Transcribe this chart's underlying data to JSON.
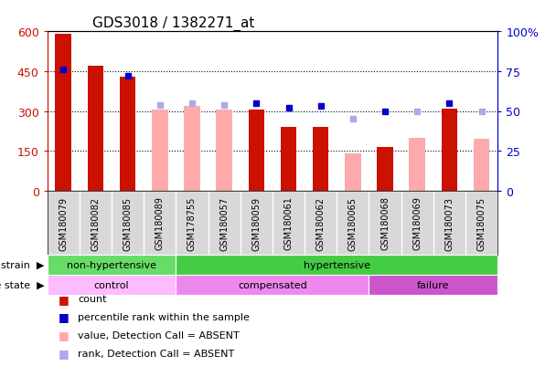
{
  "title": "GDS3018 / 1382271_at",
  "samples": [
    "GSM180079",
    "GSM180082",
    "GSM180085",
    "GSM180089",
    "GSM178755",
    "GSM180057",
    "GSM180059",
    "GSM180061",
    "GSM180062",
    "GSM180065",
    "GSM180068",
    "GSM180069",
    "GSM180073",
    "GSM180075"
  ],
  "count_values": [
    590,
    470,
    430,
    null,
    null,
    null,
    305,
    240,
    240,
    null,
    165,
    null,
    310,
    null
  ],
  "count_absent": [
    null,
    null,
    null,
    305,
    320,
    305,
    null,
    null,
    null,
    140,
    null,
    200,
    null,
    195
  ],
  "percentile_rank": [
    76,
    null,
    72,
    null,
    null,
    null,
    55,
    52,
    53,
    null,
    50,
    null,
    55,
    null
  ],
  "percentile_rank_absent": [
    null,
    null,
    null,
    54,
    55,
    54,
    null,
    null,
    null,
    45,
    null,
    50,
    null,
    50
  ],
  "ylim_left": [
    0,
    600
  ],
  "ylim_right": [
    0,
    100
  ],
  "yticks_left": [
    0,
    150,
    300,
    450,
    600
  ],
  "yticks_right": [
    0,
    25,
    50,
    75,
    100
  ],
  "yticklabels_left": [
    "0",
    "150",
    "300",
    "450",
    "600"
  ],
  "yticklabels_right": [
    "0",
    "25",
    "50",
    "75",
    "100%"
  ],
  "strain_groups": [
    {
      "label": "non-hypertensive",
      "start": 0,
      "end": 4,
      "color": "#66dd66"
    },
    {
      "label": "hypertensive",
      "start": 4,
      "end": 14,
      "color": "#44cc44"
    }
  ],
  "disease_groups": [
    {
      "label": "control",
      "start": 0,
      "end": 4,
      "color": "#ffbbff"
    },
    {
      "label": "compensated",
      "start": 4,
      "end": 10,
      "color": "#ee88ee"
    },
    {
      "label": "failure",
      "start": 10,
      "end": 14,
      "color": "#cc55cc"
    }
  ],
  "count_color": "#cc1100",
  "count_absent_color": "#ffaaaa",
  "percentile_color": "#0000cc",
  "percentile_absent_color": "#aaaaee",
  "legend_items": [
    {
      "label": "count",
      "color": "#cc1100"
    },
    {
      "label": "percentile rank within the sample",
      "color": "#0000cc"
    },
    {
      "label": "value, Detection Call = ABSENT",
      "color": "#ffaaaa"
    },
    {
      "label": "rank, Detection Call = ABSENT",
      "color": "#aaaaee"
    }
  ]
}
